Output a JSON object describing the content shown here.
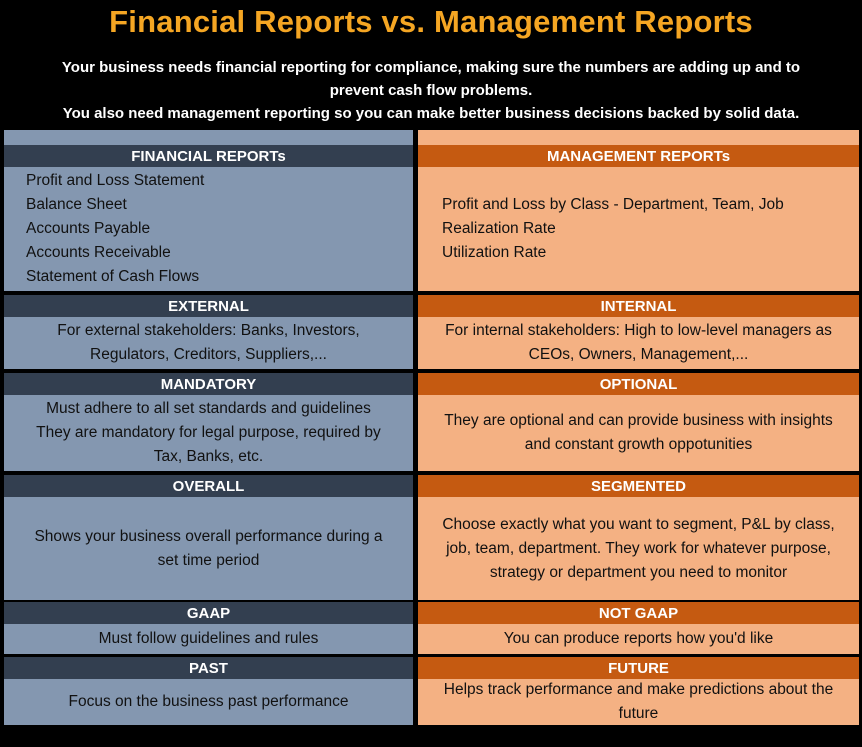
{
  "title": "Financial Reports vs. Management Reports",
  "subtitle": {
    "line1": "Your business needs financial reporting for compliance, making sure the numbers are adding up and to",
    "line2": "prevent cash flow problems.",
    "line3": "You also need management reporting so you can make better business decisions backed by solid data."
  },
  "colors": {
    "title": "#F5A623",
    "financial_header": "#333F50",
    "financial_body": "#8497B0",
    "management_header": "#C55A11",
    "management_body": "#F4B183"
  },
  "financial": {
    "reports": {
      "header": "FINANCIAL REPORTs",
      "items": [
        "Profit and Loss Statement",
        "Balance Sheet",
        "Accounts Payable",
        "Accounts Receivable",
        "Statement of Cash Flows"
      ]
    },
    "external": {
      "header": "EXTERNAL",
      "line1": "For external stakeholders: Banks,  Investors,",
      "line2": "Regulators, Creditors, Suppliers,..."
    },
    "mandatory": {
      "header": "MANDATORY",
      "line1": "Must adhere to all set standards and guidelines",
      "line2": "They are mandatory for legal purpose, required by",
      "line3": "Tax, Banks, etc."
    },
    "overall": {
      "header": "OVERALL",
      "line1": "Shows your business overall performance during a",
      "line2": "set time period"
    },
    "gaap": {
      "header": "GAAP",
      "line1": "Must follow guidelines and rules"
    },
    "past": {
      "header": "PAST",
      "line1": "Focus on the business past performance"
    }
  },
  "management": {
    "reports": {
      "header": "MANAGEMENT REPORTs",
      "items": [
        "Profit and Loss by Class - Department, Team, Job",
        "Realization Rate",
        "Utilization Rate"
      ]
    },
    "internal": {
      "header": "INTERNAL",
      "line1": "For internal stakeholders: High to low-level managers  as",
      "line2": "CEOs, Owners, Management,..."
    },
    "optional": {
      "header": "OPTIONAL",
      "line1": "They are optional and can provide business with insights",
      "line2": "and constant growth oppotunities"
    },
    "segmented": {
      "header": "SEGMENTED",
      "line1": "Choose exactly what you want to segment, P&L by class,",
      "line2": "job, team, department. They work for whatever purpose,",
      "line3": "strategy or department you need to monitor"
    },
    "not_gaap": {
      "header": "NOT GAAP",
      "line1": "You can produce reports how you'd like"
    },
    "future": {
      "header": "FUTURE",
      "line1": "Helps track performance and make predictions about the",
      "line2": "future"
    }
  }
}
